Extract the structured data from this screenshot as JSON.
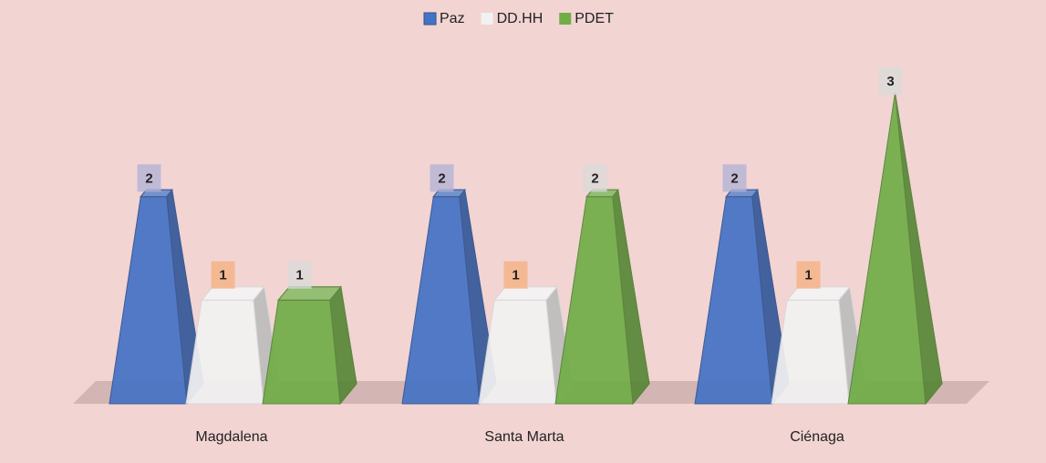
{
  "chart_data": {
    "type": "pyramid-bar",
    "categories": [
      "Magdalena",
      "Santa Marta",
      "Ciénaga"
    ],
    "series": [
      {
        "name": "Paz",
        "color": "#4472c4",
        "values": [
          2,
          2,
          2
        ]
      },
      {
        "name": "DD.HH",
        "color": "#f2f2f2",
        "values": [
          1,
          1,
          1
        ]
      },
      {
        "name": "PDET",
        "color": "#70ad47",
        "values": [
          1,
          2,
          3
        ]
      }
    ],
    "legend": "top"
  }
}
